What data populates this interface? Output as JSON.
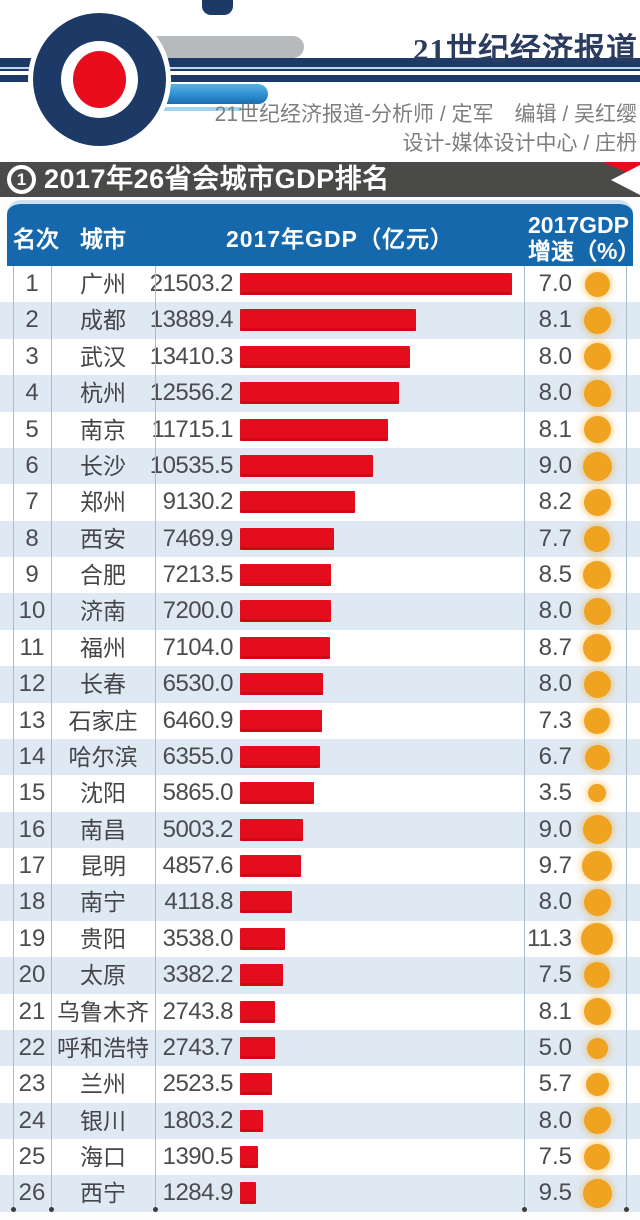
{
  "masthead": {
    "brand": "21世纪经济报道",
    "credit_line1": "21世纪经济报道-分析师 / 定军　编辑 / 吴红缨",
    "credit_line2": "设计-媒体设计中心 / 庄枬"
  },
  "section_bar": {
    "badge": "1",
    "title": "2017年26省会城市GDP排名"
  },
  "table_header": {
    "rank": "名次",
    "city": "城市",
    "gdp": "2017年GDP（亿元）",
    "growth_line1": "2017GDP",
    "growth_line2": "增速（%）"
  },
  "colors": {
    "navy": "#1d3a66",
    "logo_red": "#e80c1c",
    "bar_red": "#e30d1e",
    "header_blue": "#1568ac",
    "row_alt_blue": "#dfe9f4",
    "section_bar_gray": "#4a4a49",
    "growth_dot_orange": "#efa320",
    "divider": "#aabdcf",
    "credit_gray": "#7e7e7e"
  },
  "chart_data": {
    "type": "bar",
    "title": "2017年26省会城市GDP排名",
    "columns": [
      "名次",
      "城市",
      "2017年GDP（亿元）",
      "2017GDP增速（%）"
    ],
    "gdp_unit": "亿元",
    "growth_unit": "%",
    "gdp_axis_max": 21503.2,
    "orientation": "horizontal",
    "rows": [
      {
        "rank": 1,
        "city": "广州",
        "gdp": 21503.2,
        "growth": 7.0
      },
      {
        "rank": 2,
        "city": "成都",
        "gdp": 13889.4,
        "growth": 8.1
      },
      {
        "rank": 3,
        "city": "武汉",
        "gdp": 13410.3,
        "growth": 8.0
      },
      {
        "rank": 4,
        "city": "杭州",
        "gdp": 12556.2,
        "growth": 8.0
      },
      {
        "rank": 5,
        "city": "南京",
        "gdp": 11715.1,
        "growth": 8.1
      },
      {
        "rank": 6,
        "city": "长沙",
        "gdp": 10535.5,
        "growth": 9.0
      },
      {
        "rank": 7,
        "city": "郑州",
        "gdp": 9130.2,
        "growth": 8.2
      },
      {
        "rank": 8,
        "city": "西安",
        "gdp": 7469.9,
        "growth": 7.7
      },
      {
        "rank": 9,
        "city": "合肥",
        "gdp": 7213.5,
        "growth": 8.5
      },
      {
        "rank": 10,
        "city": "济南",
        "gdp": 7200.0,
        "growth": 8.0
      },
      {
        "rank": 11,
        "city": "福州",
        "gdp": 7104.0,
        "growth": 8.7
      },
      {
        "rank": 12,
        "city": "长春",
        "gdp": 6530.0,
        "growth": 8.0
      },
      {
        "rank": 13,
        "city": "石家庄",
        "gdp": 6460.9,
        "growth": 7.3
      },
      {
        "rank": 14,
        "city": "哈尔滨",
        "gdp": 6355.0,
        "growth": 6.7
      },
      {
        "rank": 15,
        "city": "沈阳",
        "gdp": 5865.0,
        "growth": 3.5
      },
      {
        "rank": 16,
        "city": "南昌",
        "gdp": 5003.2,
        "growth": 9.0
      },
      {
        "rank": 17,
        "city": "昆明",
        "gdp": 4857.6,
        "growth": 9.7
      },
      {
        "rank": 18,
        "city": "南宁",
        "gdp": 4118.8,
        "growth": 8.0
      },
      {
        "rank": 19,
        "city": "贵阳",
        "gdp": 3538.0,
        "growth": 11.3
      },
      {
        "rank": 20,
        "city": "太原",
        "gdp": 3382.2,
        "growth": 7.5
      },
      {
        "rank": 21,
        "city": "乌鲁木齐",
        "gdp": 2743.8,
        "growth": 8.1
      },
      {
        "rank": 22,
        "city": "呼和浩特",
        "gdp": 2743.7,
        "growth": 5.0
      },
      {
        "rank": 23,
        "city": "兰州",
        "gdp": 2523.5,
        "growth": 5.7
      },
      {
        "rank": 24,
        "city": "银川",
        "gdp": 1803.2,
        "growth": 8.0
      },
      {
        "rank": 25,
        "city": "海口",
        "gdp": 1390.5,
        "growth": 7.5
      },
      {
        "rank": 26,
        "city": "西宁",
        "gdp": 1284.9,
        "growth": 9.5
      }
    ]
  }
}
